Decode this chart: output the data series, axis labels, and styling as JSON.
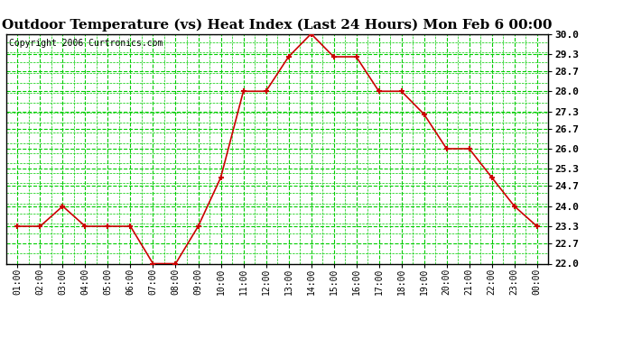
{
  "title": "Outdoor Temperature (vs) Heat Index (Last 24 Hours) Mon Feb 6 00:00",
  "copyright": "Copyright 2006 Curtronics.com",
  "x_labels": [
    "01:00",
    "02:00",
    "03:00",
    "04:00",
    "05:00",
    "06:00",
    "07:00",
    "08:00",
    "09:00",
    "10:00",
    "11:00",
    "12:00",
    "13:00",
    "14:00",
    "15:00",
    "16:00",
    "17:00",
    "18:00",
    "19:00",
    "20:00",
    "21:00",
    "22:00",
    "23:00",
    "00:00"
  ],
  "y_values": [
    23.3,
    23.3,
    24.0,
    23.3,
    23.3,
    23.3,
    22.0,
    22.0,
    23.3,
    25.0,
    28.0,
    28.0,
    29.2,
    30.0,
    29.2,
    29.2,
    28.0,
    28.0,
    27.2,
    26.0,
    26.0,
    25.0,
    24.0,
    23.3
  ],
  "line_color": "#cc0000",
  "marker_color": "#cc0000",
  "bg_color": "#ffffff",
  "plot_bg_color": "#ffffff",
  "grid_color": "#00cc00",
  "title_fontsize": 11,
  "copyright_fontsize": 7,
  "ylim_min": 22.0,
  "ylim_max": 30.0,
  "yticks": [
    22.0,
    22.7,
    23.3,
    24.0,
    24.7,
    25.3,
    26.0,
    26.7,
    27.3,
    28.0,
    28.7,
    29.3,
    30.0
  ]
}
